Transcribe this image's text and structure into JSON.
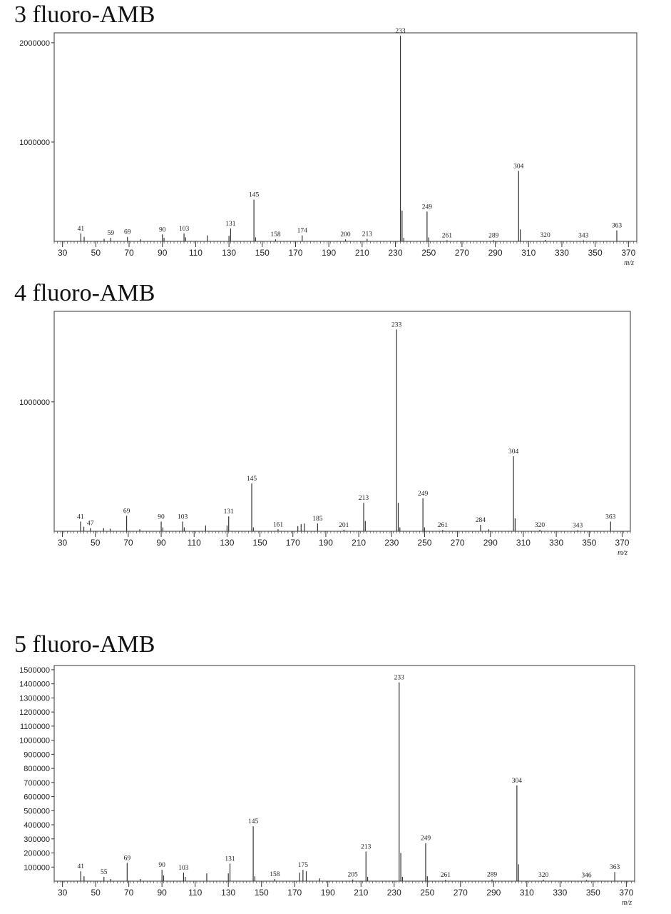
{
  "chart_data": [
    {
      "type": "bar",
      "title": "3 fluoro-AMB",
      "xlabel": "m/z",
      "ylabel": "",
      "xlim": [
        25,
        375
      ],
      "ylim": [
        0,
        2100000
      ],
      "x_ticks": [
        30,
        50,
        70,
        90,
        110,
        130,
        150,
        170,
        190,
        210,
        230,
        250,
        270,
        290,
        310,
        330,
        350,
        370
      ],
      "y_ticks": [
        1000000,
        2000000
      ],
      "y_tick_labels": [
        "1000000",
        "2000000"
      ],
      "grid": false,
      "peaks": [
        {
          "mz": 41,
          "intensity": 80000,
          "label": "41"
        },
        {
          "mz": 43,
          "intensity": 45000
        },
        {
          "mz": 55,
          "intensity": 25000
        },
        {
          "mz": 59,
          "intensity": 35000,
          "label": "59"
        },
        {
          "mz": 69,
          "intensity": 45000,
          "label": "69"
        },
        {
          "mz": 77,
          "intensity": 20000
        },
        {
          "mz": 90,
          "intensity": 70000,
          "label": "90"
        },
        {
          "mz": 91,
          "intensity": 35000
        },
        {
          "mz": 103,
          "intensity": 80000,
          "label": "103"
        },
        {
          "mz": 104,
          "intensity": 40000
        },
        {
          "mz": 117,
          "intensity": 60000
        },
        {
          "mz": 130,
          "intensity": 55000
        },
        {
          "mz": 131,
          "intensity": 130000,
          "label": "131"
        },
        {
          "mz": 145,
          "intensity": 420000,
          "label": "145"
        },
        {
          "mz": 146,
          "intensity": 40000
        },
        {
          "mz": 158,
          "intensity": 20000,
          "label": "158"
        },
        {
          "mz": 174,
          "intensity": 60000,
          "label": "174"
        },
        {
          "mz": 200,
          "intensity": 20000,
          "label": "200"
        },
        {
          "mz": 213,
          "intensity": 25000,
          "label": "213"
        },
        {
          "mz": 233,
          "intensity": 2070000,
          "label": "233"
        },
        {
          "mz": 234,
          "intensity": 310000
        },
        {
          "mz": 235,
          "intensity": 35000
        },
        {
          "mz": 249,
          "intensity": 300000,
          "label": "249"
        },
        {
          "mz": 250,
          "intensity": 40000
        },
        {
          "mz": 261,
          "intensity": 10000,
          "label": "261"
        },
        {
          "mz": 289,
          "intensity": 12000,
          "label": "289"
        },
        {
          "mz": 304,
          "intensity": 710000,
          "label": "304"
        },
        {
          "mz": 305,
          "intensity": 120000
        },
        {
          "mz": 320,
          "intensity": 15000,
          "label": "320"
        },
        {
          "mz": 343,
          "intensity": 10000,
          "label": "343"
        },
        {
          "mz": 363,
          "intensity": 110000,
          "label": "363"
        }
      ]
    },
    {
      "type": "bar",
      "title": "4 fluoro-AMB",
      "xlabel": "m/z",
      "ylabel": "",
      "xlim": [
        25,
        375
      ],
      "ylim": [
        0,
        1700000
      ],
      "x_ticks": [
        30,
        50,
        70,
        90,
        110,
        130,
        150,
        170,
        190,
        210,
        230,
        250,
        270,
        290,
        310,
        330,
        350,
        370
      ],
      "y_ticks": [
        1000000
      ],
      "y_tick_labels": [
        "1000000"
      ],
      "grid": false,
      "peaks": [
        {
          "mz": 41,
          "intensity": 75000,
          "label": "41"
        },
        {
          "mz": 43,
          "intensity": 35000
        },
        {
          "mz": 47,
          "intensity": 25000,
          "label": "47"
        },
        {
          "mz": 55,
          "intensity": 25000
        },
        {
          "mz": 59,
          "intensity": 20000
        },
        {
          "mz": 69,
          "intensity": 120000,
          "label": "69"
        },
        {
          "mz": 77,
          "intensity": 15000
        },
        {
          "mz": 90,
          "intensity": 75000,
          "label": "90"
        },
        {
          "mz": 91,
          "intensity": 30000
        },
        {
          "mz": 103,
          "intensity": 75000,
          "label": "103"
        },
        {
          "mz": 104,
          "intensity": 30000
        },
        {
          "mz": 117,
          "intensity": 45000
        },
        {
          "mz": 130,
          "intensity": 45000
        },
        {
          "mz": 131,
          "intensity": 115000,
          "label": "131"
        },
        {
          "mz": 145,
          "intensity": 370000,
          "label": "145"
        },
        {
          "mz": 146,
          "intensity": 30000
        },
        {
          "mz": 161,
          "intensity": 15000,
          "label": "161"
        },
        {
          "mz": 173,
          "intensity": 40000
        },
        {
          "mz": 175,
          "intensity": 55000
        },
        {
          "mz": 177,
          "intensity": 60000
        },
        {
          "mz": 185,
          "intensity": 60000,
          "label": "185"
        },
        {
          "mz": 201,
          "intensity": 12000,
          "label": "201"
        },
        {
          "mz": 213,
          "intensity": 220000,
          "label": "213"
        },
        {
          "mz": 214,
          "intensity": 80000
        },
        {
          "mz": 233,
          "intensity": 1560000,
          "label": "233"
        },
        {
          "mz": 234,
          "intensity": 220000
        },
        {
          "mz": 235,
          "intensity": 30000
        },
        {
          "mz": 249,
          "intensity": 255000,
          "label": "249"
        },
        {
          "mz": 250,
          "intensity": 30000
        },
        {
          "mz": 261,
          "intensity": 10000,
          "label": "261"
        },
        {
          "mz": 284,
          "intensity": 50000,
          "label": "284"
        },
        {
          "mz": 289,
          "intensity": 15000
        },
        {
          "mz": 304,
          "intensity": 580000,
          "label": "304"
        },
        {
          "mz": 305,
          "intensity": 100000
        },
        {
          "mz": 320,
          "intensity": 12000,
          "label": "320"
        },
        {
          "mz": 343,
          "intensity": 8000,
          "label": "343"
        },
        {
          "mz": 363,
          "intensity": 75000,
          "label": "363"
        }
      ]
    },
    {
      "type": "bar",
      "title": "5 fluoro-AMB",
      "xlabel": "m/z",
      "ylabel": "",
      "xlim": [
        25,
        375
      ],
      "ylim": [
        0,
        1530000
      ],
      "x_ticks": [
        30,
        50,
        70,
        90,
        110,
        130,
        150,
        170,
        190,
        210,
        230,
        250,
        270,
        290,
        310,
        330,
        350,
        370
      ],
      "y_ticks": [
        100000,
        200000,
        300000,
        400000,
        500000,
        600000,
        700000,
        800000,
        900000,
        1000000,
        1100000,
        1200000,
        1300000,
        1400000,
        1500000
      ],
      "y_tick_labels": [
        "100000",
        "200000",
        "300000",
        "400000",
        "500000",
        "600000",
        "700000",
        "800000",
        "900000",
        "1000000",
        "1100000",
        "1200000",
        "1300000",
        "1400000",
        "1500000"
      ],
      "grid": false,
      "peaks": [
        {
          "mz": 41,
          "intensity": 70000,
          "label": "41"
        },
        {
          "mz": 43,
          "intensity": 35000
        },
        {
          "mz": 55,
          "intensity": 30000,
          "label": "55"
        },
        {
          "mz": 59,
          "intensity": 15000
        },
        {
          "mz": 69,
          "intensity": 130000,
          "label": "69"
        },
        {
          "mz": 77,
          "intensity": 15000
        },
        {
          "mz": 90,
          "intensity": 80000,
          "label": "90"
        },
        {
          "mz": 91,
          "intensity": 40000
        },
        {
          "mz": 103,
          "intensity": 60000,
          "label": "103"
        },
        {
          "mz": 104,
          "intensity": 30000
        },
        {
          "mz": 117,
          "intensity": 55000
        },
        {
          "mz": 130,
          "intensity": 55000
        },
        {
          "mz": 131,
          "intensity": 125000,
          "label": "131"
        },
        {
          "mz": 145,
          "intensity": 390000,
          "label": "145"
        },
        {
          "mz": 146,
          "intensity": 35000
        },
        {
          "mz": 158,
          "intensity": 15000,
          "label": "158"
        },
        {
          "mz": 173,
          "intensity": 60000
        },
        {
          "mz": 175,
          "intensity": 80000,
          "label": "175"
        },
        {
          "mz": 177,
          "intensity": 70000
        },
        {
          "mz": 185,
          "intensity": 20000
        },
        {
          "mz": 205,
          "intensity": 12000,
          "label": "205"
        },
        {
          "mz": 213,
          "intensity": 210000,
          "label": "213"
        },
        {
          "mz": 214,
          "intensity": 30000
        },
        {
          "mz": 233,
          "intensity": 1410000,
          "label": "233"
        },
        {
          "mz": 234,
          "intensity": 200000
        },
        {
          "mz": 235,
          "intensity": 30000
        },
        {
          "mz": 249,
          "intensity": 270000,
          "label": "249"
        },
        {
          "mz": 250,
          "intensity": 35000
        },
        {
          "mz": 261,
          "intensity": 10000,
          "label": "261"
        },
        {
          "mz": 289,
          "intensity": 12000,
          "label": "289"
        },
        {
          "mz": 304,
          "intensity": 680000,
          "label": "304"
        },
        {
          "mz": 305,
          "intensity": 120000
        },
        {
          "mz": 320,
          "intensity": 10000,
          "label": "320"
        },
        {
          "mz": 346,
          "intensity": 8000,
          "label": "346"
        },
        {
          "mz": 363,
          "intensity": 65000,
          "label": "363"
        }
      ]
    }
  ]
}
